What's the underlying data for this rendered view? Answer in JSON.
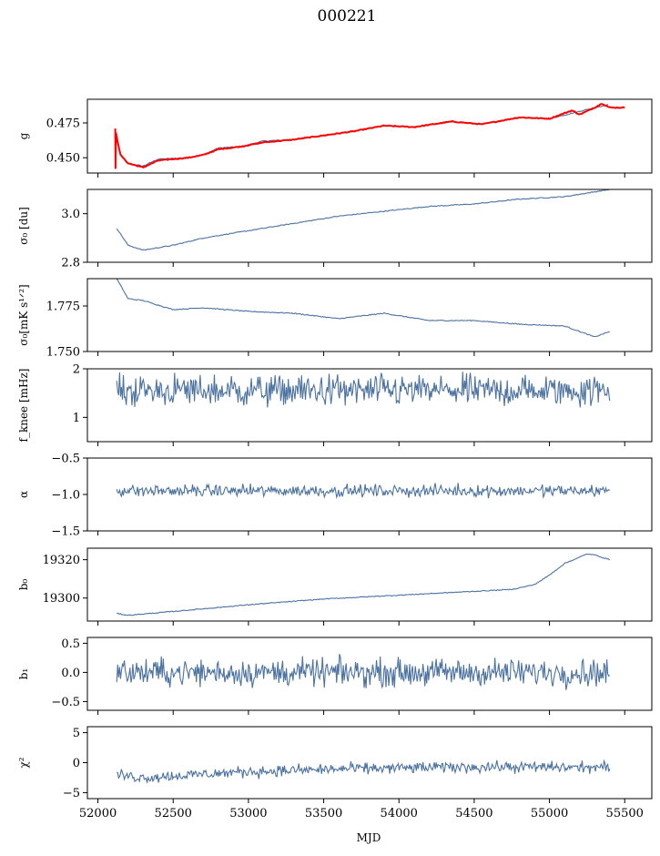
{
  "figure": {
    "title": "000221",
    "xlabel": "MJD",
    "x_ticks": [
      "52000",
      "52500",
      "53000",
      "53500",
      "54000",
      "54500",
      "55000",
      "55500"
    ]
  },
  "chart_data": [
    {
      "type": "line",
      "ylabel": "g",
      "xlim": [
        51930,
        55680
      ],
      "ylim": [
        0.439,
        0.492
      ],
      "y_ticks": [
        0.45,
        0.475
      ],
      "y_tick_labels": [
        "0.450",
        "0.475"
      ],
      "series": [
        {
          "color": "#4c72a0",
          "points": [
            [
              52125,
              0.466
            ],
            [
              52150,
              0.452
            ],
            [
              52200,
              0.446
            ],
            [
              52300,
              0.444
            ],
            [
              52400,
              0.449
            ],
            [
              52600,
              0.45
            ],
            [
              52700,
              0.452
            ],
            [
              52800,
              0.457
            ],
            [
              52950,
              0.458
            ],
            [
              53100,
              0.462
            ],
            [
              53300,
              0.463
            ],
            [
              53500,
              0.466
            ],
            [
              53700,
              0.469
            ],
            [
              53900,
              0.473
            ],
            [
              54100,
              0.472
            ],
            [
              54350,
              0.476
            ],
            [
              54550,
              0.474
            ],
            [
              54800,
              0.479
            ],
            [
              55000,
              0.478
            ],
            [
              55150,
              0.482
            ],
            [
              55300,
              0.486
            ],
            [
              55390,
              0.488
            ]
          ]
        },
        {
          "color": "#ff0000",
          "points": [
            [
              52115,
              0.471
            ],
            [
              52117,
              0.442
            ],
            [
              52120,
              0.468
            ],
            [
              52125,
              0.465
            ],
            [
              52150,
              0.452
            ],
            [
              52200,
              0.446
            ],
            [
              52300,
              0.443
            ],
            [
              52400,
              0.448
            ],
            [
              52600,
              0.45
            ],
            [
              52700,
              0.452
            ],
            [
              52800,
              0.456
            ],
            [
              52950,
              0.458
            ],
            [
              53100,
              0.461
            ],
            [
              53300,
              0.463
            ],
            [
              53500,
              0.466
            ],
            [
              53700,
              0.469
            ],
            [
              53900,
              0.473
            ],
            [
              54100,
              0.472
            ],
            [
              54350,
              0.476
            ],
            [
              54550,
              0.474
            ],
            [
              54800,
              0.479
            ],
            [
              55000,
              0.478
            ],
            [
              55150,
              0.484
            ],
            [
              55200,
              0.481
            ],
            [
              55300,
              0.486
            ],
            [
              55350,
              0.489
            ],
            [
              55400,
              0.486
            ],
            [
              55500,
              0.486
            ]
          ]
        }
      ]
    },
    {
      "type": "line",
      "ylabel": "σ₀ [du]",
      "xlim": [
        51930,
        55680
      ],
      "ylim": [
        2.8,
        3.1
      ],
      "y_ticks": [
        2.8,
        3.0
      ],
      "y_tick_labels": [
        "2.8",
        "3.0"
      ],
      "series": [
        {
          "color": "#4c72a0",
          "points": [
            [
              52125,
              2.94
            ],
            [
              52200,
              2.87
            ],
            [
              52300,
              2.85
            ],
            [
              52500,
              2.87
            ],
            [
              52700,
              2.9
            ],
            [
              53000,
              2.93
            ],
            [
              53300,
              2.96
            ],
            [
              53600,
              2.99
            ],
            [
              53900,
              3.01
            ],
            [
              54200,
              3.03
            ],
            [
              54500,
              3.04
            ],
            [
              54800,
              3.06
            ],
            [
              55100,
              3.07
            ],
            [
              55300,
              3.09
            ],
            [
              55400,
              3.1
            ]
          ]
        }
      ]
    },
    {
      "type": "line",
      "ylabel": "σ₀[mK s¹ᐟ²]",
      "xlim": [
        51930,
        55680
      ],
      "ylim": [
        1.75,
        1.79
      ],
      "y_ticks": [
        1.75,
        1.775
      ],
      "y_tick_labels": [
        "1.750",
        "1.775"
      ],
      "series": [
        {
          "color": "#4c72a0",
          "points": [
            [
              52125,
              1.79
            ],
            [
              52200,
              1.779
            ],
            [
              52300,
              1.778
            ],
            [
              52500,
              1.773
            ],
            [
              52700,
              1.774
            ],
            [
              53000,
              1.772
            ],
            [
              53300,
              1.771
            ],
            [
              53600,
              1.768
            ],
            [
              53900,
              1.771
            ],
            [
              54200,
              1.767
            ],
            [
              54500,
              1.767
            ],
            [
              54800,
              1.765
            ],
            [
              55100,
              1.764
            ],
            [
              55300,
              1.758
            ],
            [
              55400,
              1.761
            ]
          ]
        }
      ]
    },
    {
      "type": "line",
      "ylabel": "f_knee [mHz]",
      "xlim": [
        51930,
        55680
      ],
      "ylim": [
        0.5,
        2.0
      ],
      "y_ticks": [
        1,
        2
      ],
      "y_tick_labels": [
        "1",
        "2"
      ],
      "series": [
        {
          "color": "#4c72a0",
          "noise_around_mean": 1.55,
          "noise_amplitude": 0.28,
          "points": [
            [
              52125,
              1.55
            ],
            [
              55400,
              1.55
            ]
          ]
        }
      ]
    },
    {
      "type": "line",
      "ylabel": "α",
      "xlim": [
        51930,
        55680
      ],
      "ylim": [
        -1.5,
        -0.5
      ],
      "y_ticks": [
        -1.5,
        -1.0,
        -0.5
      ],
      "y_tick_labels": [
        "−1.5",
        "−1.0",
        "−0.5"
      ],
      "series": [
        {
          "color": "#4c72a0",
          "noise_around_mean": -0.95,
          "noise_amplitude": 0.07,
          "points": [
            [
              52125,
              -0.95
            ],
            [
              55400,
              -0.95
            ]
          ]
        }
      ]
    },
    {
      "type": "line",
      "ylabel": "b₀",
      "xlim": [
        51930,
        55680
      ],
      "ylim": [
        19288,
        19326
      ],
      "y_ticks": [
        19300,
        19320
      ],
      "y_tick_labels": [
        "19300",
        "19320"
      ],
      "series": [
        {
          "color": "#4c72a0",
          "points": [
            [
              52125,
              19292
            ],
            [
              52200,
              19291
            ],
            [
              52500,
              19293
            ],
            [
              53000,
              19296.5
            ],
            [
              53500,
              19299.5
            ],
            [
              54000,
              19301.5
            ],
            [
              54500,
              19303.5
            ],
            [
              54750,
              19304.5
            ],
            [
              54900,
              19307
            ],
            [
              55000,
              19312
            ],
            [
              55100,
              19318
            ],
            [
              55250,
              19323
            ],
            [
              55300,
              19322.5
            ],
            [
              55400,
              19320
            ]
          ]
        }
      ]
    },
    {
      "type": "line",
      "ylabel": "b₁",
      "xlim": [
        51930,
        55680
      ],
      "ylim": [
        -0.65,
        0.6
      ],
      "y_ticks": [
        -0.5,
        0.0,
        0.5
      ],
      "y_tick_labels": [
        "−0.5",
        "0.0",
        "0.5"
      ],
      "series": [
        {
          "color": "#4c72a0",
          "noise_around_mean": 0.0,
          "noise_amplitude": 0.2,
          "points": [
            [
              52125,
              0.0
            ],
            [
              55400,
              0.0
            ]
          ]
        }
      ]
    },
    {
      "type": "line",
      "ylabel": "χ²",
      "xlim": [
        51930,
        55680
      ],
      "ylim": [
        -6,
        6
      ],
      "y_ticks": [
        -5,
        0,
        5
      ],
      "y_tick_labels": [
        "−5",
        "0",
        "5"
      ],
      "series": [
        {
          "color": "#4c72a0",
          "noise_around_mean": -1.2,
          "noise_amplitude": 0.8,
          "points": [
            [
              52125,
              -2.0
            ],
            [
              52300,
              -2.5
            ],
            [
              53000,
              -1.5
            ],
            [
              53700,
              -1.0
            ],
            [
              54500,
              -0.7
            ],
            [
              55400,
              -0.8
            ]
          ]
        }
      ]
    }
  ]
}
